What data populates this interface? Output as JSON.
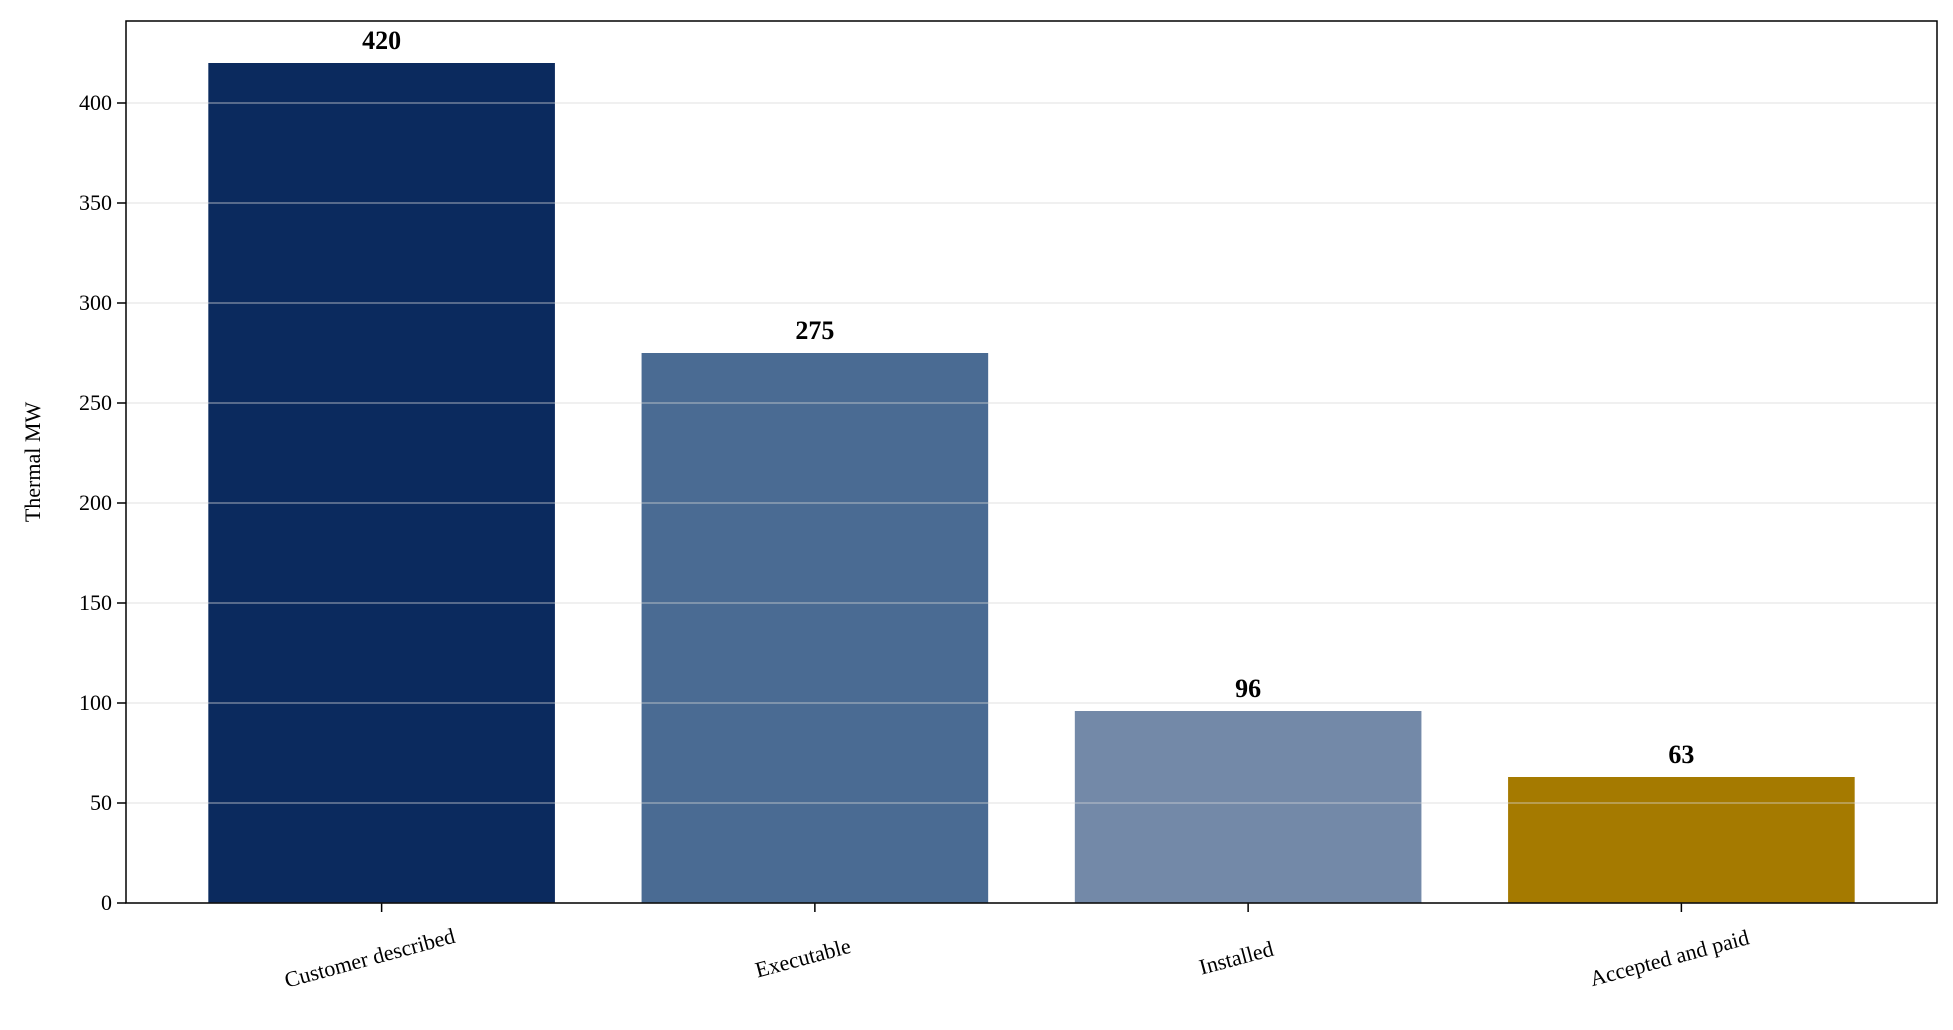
{
  "chart_data": {
    "type": "bar",
    "y_label": "Thermal MW",
    "categories": [
      "Customer described",
      "Executable",
      "Installed",
      "Accepted and paid"
    ],
    "values": [
      420,
      275,
      96,
      63
    ],
    "colors": [
      "#0b2a5e",
      "#4a6b93",
      "#7389a8",
      "#a57a00"
    ],
    "ylim": [
      0,
      441
    ],
    "yticks": [
      0,
      50,
      100,
      150,
      200,
      250,
      300,
      350,
      400
    ],
    "grid": true
  }
}
